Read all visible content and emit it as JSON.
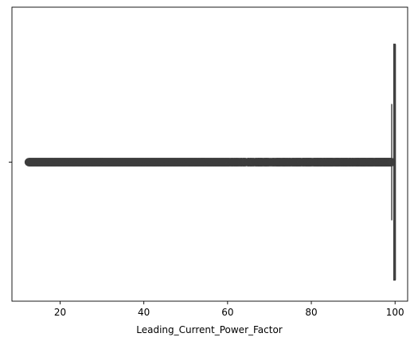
{
  "chart_data": {
    "type": "box",
    "orientation": "horizontal",
    "xlabel": "Leading_Current_Power_Factor",
    "ylabel": "",
    "title": "",
    "xlim": [
      8.5,
      103
    ],
    "xticks": [
      20,
      40,
      60,
      80,
      100
    ],
    "y_category_ticks": [
      ""
    ],
    "grid": false,
    "box": {
      "q1": 99.7,
      "median": 100,
      "q3": 100,
      "whisker_low": 99.2,
      "whisker_high": 100
    },
    "outliers": {
      "range_dense": [
        12.5,
        60
      ],
      "range_sparse": [
        60,
        99.2
      ],
      "marker": "circle",
      "color": "#3d3d3d"
    },
    "colors": {
      "box_line": "#3d3d3d",
      "outlier": "#3d3d3d"
    }
  }
}
